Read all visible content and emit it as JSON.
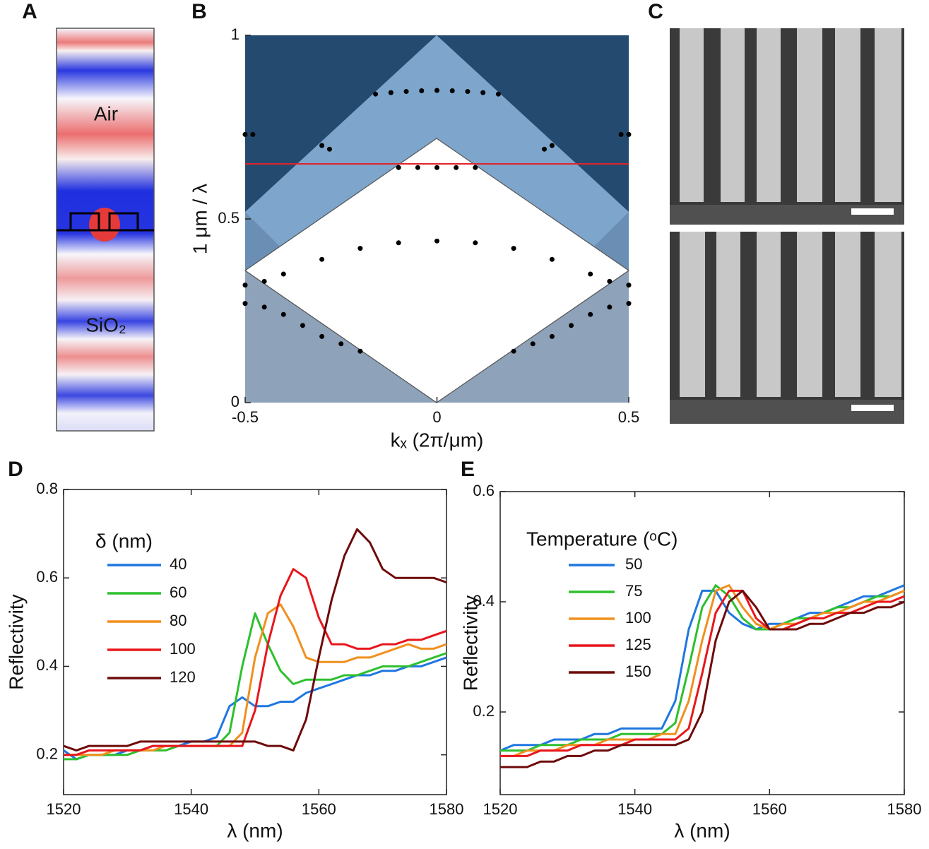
{
  "panel_labels": [
    "A",
    "B",
    "C",
    "D",
    "E"
  ],
  "panel_a": {
    "labels": [
      "Air",
      "SiO₂"
    ]
  },
  "chart_data": [
    {
      "type": "scatter",
      "xlabel": "kₓ (2π/μm)",
      "ylabel": "1 μm / λ",
      "xlim": [
        -0.5,
        0.5
      ],
      "ylim": [
        0,
        1
      ],
      "xticks": [
        -0.5,
        0,
        0.5
      ],
      "yticks": [
        0,
        0.5,
        1
      ],
      "color": "#000000",
      "hline": {
        "value": 0.65,
        "color": "#e0242a"
      },
      "x": [
        -0.16,
        -0.12,
        -0.08,
        -0.04,
        0,
        0.04,
        0.08,
        0.12,
        0.16,
        -0.1,
        -0.05,
        0,
        0.05,
        0.1,
        -0.5,
        -0.48,
        0.48,
        0.5,
        -0.3,
        -0.28,
        0.28,
        0.3,
        -0.4,
        -0.3,
        -0.2,
        -0.1,
        0,
        0.1,
        0.2,
        0.3,
        0.4,
        -0.5,
        -0.45,
        -0.4,
        -0.35,
        -0.3,
        -0.25,
        -0.2,
        0.2,
        0.25,
        0.3,
        0.35,
        0.4,
        0.45,
        0.5,
        -0.5,
        -0.45,
        0.45,
        0.5
      ],
      "values": [
        0.84,
        0.844,
        0.847,
        0.849,
        0.85,
        0.849,
        0.847,
        0.844,
        0.84,
        0.64,
        0.64,
        0.64,
        0.64,
        0.64,
        0.73,
        0.73,
        0.73,
        0.73,
        0.7,
        0.69,
        0.69,
        0.7,
        0.35,
        0.39,
        0.42,
        0.435,
        0.44,
        0.435,
        0.42,
        0.39,
        0.35,
        0.27,
        0.26,
        0.24,
        0.21,
        0.18,
        0.16,
        0.14,
        0.14,
        0.16,
        0.18,
        0.21,
        0.24,
        0.26,
        0.27,
        0.32,
        0.33,
        0.33,
        0.32
      ]
    },
    {
      "type": "line",
      "xlabel": "λ (nm)",
      "ylabel": "Reflectivity",
      "legend_title": "δ (nm)",
      "xlim": [
        1520,
        1580
      ],
      "ylim": [
        0.11,
        0.8
      ],
      "xticks": [
        1520,
        1540,
        1560,
        1580
      ],
      "yticks": [
        0.2,
        0.4,
        0.6,
        0.8
      ],
      "x": [
        1520,
        1522,
        1524,
        1526,
        1528,
        1530,
        1532,
        1534,
        1536,
        1538,
        1540,
        1542,
        1544,
        1546,
        1548,
        1550,
        1552,
        1554,
        1556,
        1558,
        1560,
        1562,
        1564,
        1566,
        1568,
        1570,
        1572,
        1574,
        1576,
        1578,
        1580
      ],
      "series": [
        {
          "name": "40",
          "color": "#1f77e0",
          "values": [
            0.21,
            0.19,
            0.2,
            0.2,
            0.2,
            0.21,
            0.21,
            0.22,
            0.22,
            0.22,
            0.23,
            0.23,
            0.24,
            0.31,
            0.33,
            0.31,
            0.31,
            0.32,
            0.32,
            0.34,
            0.35,
            0.36,
            0.37,
            0.38,
            0.38,
            0.39,
            0.39,
            0.4,
            0.4,
            0.41,
            0.42
          ]
        },
        {
          "name": "60",
          "color": "#2ec02e",
          "values": [
            0.19,
            0.19,
            0.2,
            0.2,
            0.2,
            0.2,
            0.21,
            0.21,
            0.21,
            0.22,
            0.22,
            0.22,
            0.22,
            0.25,
            0.4,
            0.52,
            0.45,
            0.39,
            0.36,
            0.37,
            0.37,
            0.37,
            0.38,
            0.38,
            0.39,
            0.4,
            0.4,
            0.4,
            0.41,
            0.42,
            0.43
          ]
        },
        {
          "name": "80",
          "color": "#f0901e",
          "values": [
            0.2,
            0.2,
            0.2,
            0.2,
            0.21,
            0.21,
            0.21,
            0.21,
            0.22,
            0.22,
            0.22,
            0.22,
            0.22,
            0.22,
            0.25,
            0.42,
            0.52,
            0.54,
            0.49,
            0.42,
            0.41,
            0.41,
            0.41,
            0.42,
            0.42,
            0.43,
            0.44,
            0.45,
            0.44,
            0.44,
            0.45
          ]
        },
        {
          "name": "100",
          "color": "#e8161c",
          "values": [
            0.2,
            0.2,
            0.21,
            0.21,
            0.21,
            0.21,
            0.21,
            0.22,
            0.22,
            0.22,
            0.22,
            0.22,
            0.22,
            0.22,
            0.22,
            0.3,
            0.45,
            0.56,
            0.62,
            0.6,
            0.51,
            0.45,
            0.45,
            0.44,
            0.44,
            0.45,
            0.45,
            0.46,
            0.46,
            0.47,
            0.48
          ]
        },
        {
          "name": "120",
          "color": "#6e0a0a",
          "values": [
            0.22,
            0.21,
            0.22,
            0.22,
            0.22,
            0.22,
            0.23,
            0.23,
            0.23,
            0.23,
            0.23,
            0.23,
            0.23,
            0.23,
            0.23,
            0.23,
            0.22,
            0.22,
            0.21,
            0.28,
            0.42,
            0.55,
            0.65,
            0.71,
            0.68,
            0.62,
            0.6,
            0.6,
            0.6,
            0.6,
            0.59
          ]
        }
      ]
    },
    {
      "type": "line",
      "xlabel": "λ (nm)",
      "ylabel": "Reflectivity",
      "legend_title": "Temperature (ᵒC)",
      "xlim": [
        1520,
        1580
      ],
      "ylim": [
        0.05,
        0.6
      ],
      "xticks": [
        1520,
        1540,
        1560,
        1580
      ],
      "yticks": [
        0.2,
        0.4,
        0.6
      ],
      "x": [
        1520,
        1522,
        1524,
        1526,
        1528,
        1530,
        1532,
        1534,
        1536,
        1538,
        1540,
        1542,
        1544,
        1546,
        1548,
        1550,
        1552,
        1554,
        1556,
        1558,
        1560,
        1562,
        1564,
        1566,
        1568,
        1570,
        1572,
        1574,
        1576,
        1578,
        1580
      ],
      "series": [
        {
          "name": "50",
          "color": "#1f77e0",
          "values": [
            0.13,
            0.14,
            0.14,
            0.14,
            0.15,
            0.15,
            0.15,
            0.16,
            0.16,
            0.17,
            0.17,
            0.17,
            0.17,
            0.22,
            0.35,
            0.42,
            0.42,
            0.38,
            0.36,
            0.35,
            0.36,
            0.36,
            0.37,
            0.38,
            0.38,
            0.39,
            0.4,
            0.41,
            0.41,
            0.42,
            0.43
          ]
        },
        {
          "name": "75",
          "color": "#2ec02e",
          "values": [
            0.13,
            0.13,
            0.13,
            0.14,
            0.14,
            0.14,
            0.15,
            0.15,
            0.15,
            0.16,
            0.16,
            0.16,
            0.16,
            0.18,
            0.28,
            0.39,
            0.43,
            0.41,
            0.37,
            0.35,
            0.35,
            0.36,
            0.37,
            0.37,
            0.38,
            0.39,
            0.39,
            0.4,
            0.41,
            0.41,
            0.42
          ]
        },
        {
          "name": "100",
          "color": "#f0901e",
          "values": [
            0.12,
            0.12,
            0.13,
            0.13,
            0.13,
            0.14,
            0.14,
            0.14,
            0.15,
            0.15,
            0.15,
            0.15,
            0.16,
            0.16,
            0.22,
            0.33,
            0.42,
            0.43,
            0.39,
            0.36,
            0.35,
            0.36,
            0.36,
            0.37,
            0.38,
            0.38,
            0.39,
            0.4,
            0.4,
            0.41,
            0.42
          ]
        },
        {
          "name": "125",
          "color": "#e8161c",
          "values": [
            0.12,
            0.12,
            0.12,
            0.13,
            0.13,
            0.13,
            0.14,
            0.14,
            0.14,
            0.14,
            0.15,
            0.15,
            0.15,
            0.15,
            0.17,
            0.27,
            0.38,
            0.42,
            0.42,
            0.37,
            0.35,
            0.35,
            0.36,
            0.37,
            0.37,
            0.38,
            0.38,
            0.39,
            0.4,
            0.4,
            0.41
          ]
        },
        {
          "name": "150",
          "color": "#6e0a0a",
          "values": [
            0.1,
            0.1,
            0.1,
            0.11,
            0.11,
            0.12,
            0.12,
            0.13,
            0.13,
            0.14,
            0.14,
            0.14,
            0.14,
            0.14,
            0.15,
            0.2,
            0.33,
            0.4,
            0.42,
            0.39,
            0.35,
            0.35,
            0.35,
            0.36,
            0.36,
            0.37,
            0.38,
            0.38,
            0.39,
            0.39,
            0.4
          ]
        }
      ]
    }
  ]
}
